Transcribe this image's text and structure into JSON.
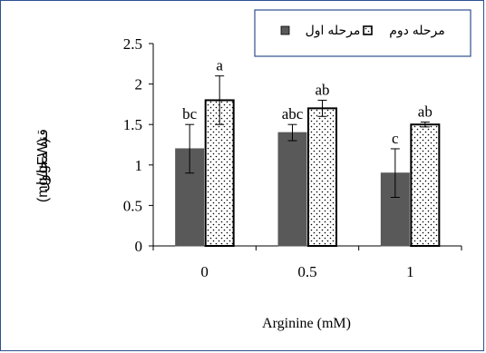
{
  "chart_data": {
    "type": "bar",
    "categories": [
      "0",
      "0.5",
      "1"
    ],
    "series": [
      {
        "name": "مرحله اول",
        "values": [
          1.2,
          1.4,
          0.9
        ],
        "errors": [
          0.3,
          0.1,
          0.3
        ],
        "letters": [
          "bc",
          "abc",
          "c"
        ],
        "color": "#595959",
        "pattern": "solid"
      },
      {
        "name": "مرحله دوم",
        "values": [
          1.8,
          1.7,
          1.5
        ],
        "errors": [
          0.3,
          0.1,
          0.03
        ],
        "letters": [
          "a",
          "ab",
          "ab"
        ],
        "color": "#ffffff",
        "pattern": "dotted"
      }
    ],
    "xlabel": "Arginine (mM)",
    "ylabel_fa": "قند محلول",
    "ylabel_unit": "(mg/gFW)",
    "ylim": [
      0,
      2.5
    ],
    "yticks": [
      "0",
      "0.5",
      "1",
      "1.5",
      "2",
      "2.5"
    ],
    "grid": false,
    "legend_position": "top-right",
    "frame_color": "#2f4f8f"
  }
}
